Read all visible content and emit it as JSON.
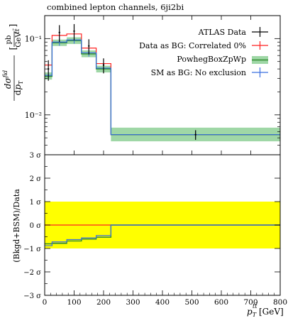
{
  "title": "combined lepton channels, 6ji2bi",
  "colors": {
    "data": "#000000",
    "correlated": "#ff2222",
    "powheg_line": "#2e8b2e",
    "powheg_band": "#9fd7a6",
    "sm": "#3b6fe0",
    "yellow": "#ffff00"
  },
  "chart_data": [
    {
      "type": "line",
      "panel": "main",
      "ylabel": "dσ^fid / d p_T^tt̄ [pb/GeV]",
      "xlim": [
        0,
        800
      ],
      "ylim": [
        0.003,
        0.2
      ],
      "log_y": true,
      "y_ticks": [
        {
          "value": 0.1,
          "label": "10⁻¹"
        },
        {
          "value": 0.01,
          "label": "10⁻²"
        }
      ],
      "legend": "top-right",
      "bins": [
        [
          0,
          25
        ],
        [
          25,
          75
        ],
        [
          75,
          125
        ],
        [
          125,
          175
        ],
        [
          175,
          225
        ],
        [
          225,
          800
        ]
      ],
      "series": [
        {
          "name": "ATLAS Data",
          "key": "data",
          "x": [
            12.5,
            50,
            100,
            150,
            200,
            512.5
          ],
          "y": [
            0.04,
            0.12,
            0.125,
            0.08,
            0.045,
            0.0055
          ],
          "yerr": [
            0.012,
            0.03,
            0.03,
            0.018,
            0.01,
            0.0008
          ]
        },
        {
          "name": "Data as BG: Correlated 0%",
          "key": "correlated",
          "y": [
            0.045,
            0.11,
            0.115,
            0.075,
            0.047,
            0.0055
          ]
        },
        {
          "name": "PowhegBoxZpWp",
          "key": "powheg",
          "y": [
            0.032,
            0.088,
            0.094,
            0.063,
            0.04,
            0.0055
          ],
          "band_low": [
            0.029,
            0.08,
            0.085,
            0.057,
            0.036,
            0.0045
          ],
          "band_high": [
            0.036,
            0.097,
            0.104,
            0.07,
            0.044,
            0.0068
          ]
        },
        {
          "name": "SM as BG: No exclusion",
          "key": "sm",
          "y": [
            0.033,
            0.09,
            0.096,
            0.065,
            0.041,
            0.0055
          ]
        }
      ]
    },
    {
      "type": "line",
      "panel": "ratio",
      "ylabel": "(Bkgd+BSM)/Data",
      "xlabel": "p_T^tt̄ [GeV]",
      "xlim": [
        0,
        800
      ],
      "ylim": [
        -3,
        3
      ],
      "x_ticks": [
        0,
        100,
        200,
        300,
        400,
        500,
        600,
        700,
        800
      ],
      "y_tick_labels": [
        "−3 σ",
        "−2 σ",
        "−1 σ",
        "0 σ",
        "1 σ",
        "2 σ",
        "3 σ"
      ],
      "band": [
        -1,
        1
      ],
      "series": [
        {
          "name": "Data as BG: Correlated 0%",
          "key": "correlated",
          "y": [
            0,
            0,
            0,
            0,
            0,
            0
          ]
        },
        {
          "name": "PowhegBoxZpWp",
          "key": "powheg",
          "y": [
            -0.8,
            -0.78,
            -0.68,
            -0.6,
            -0.52,
            0
          ]
        },
        {
          "name": "SM as BG: No exclusion",
          "key": "sm",
          "y": [
            -0.88,
            -0.72,
            -0.62,
            -0.55,
            -0.45,
            0
          ]
        }
      ]
    }
  ]
}
